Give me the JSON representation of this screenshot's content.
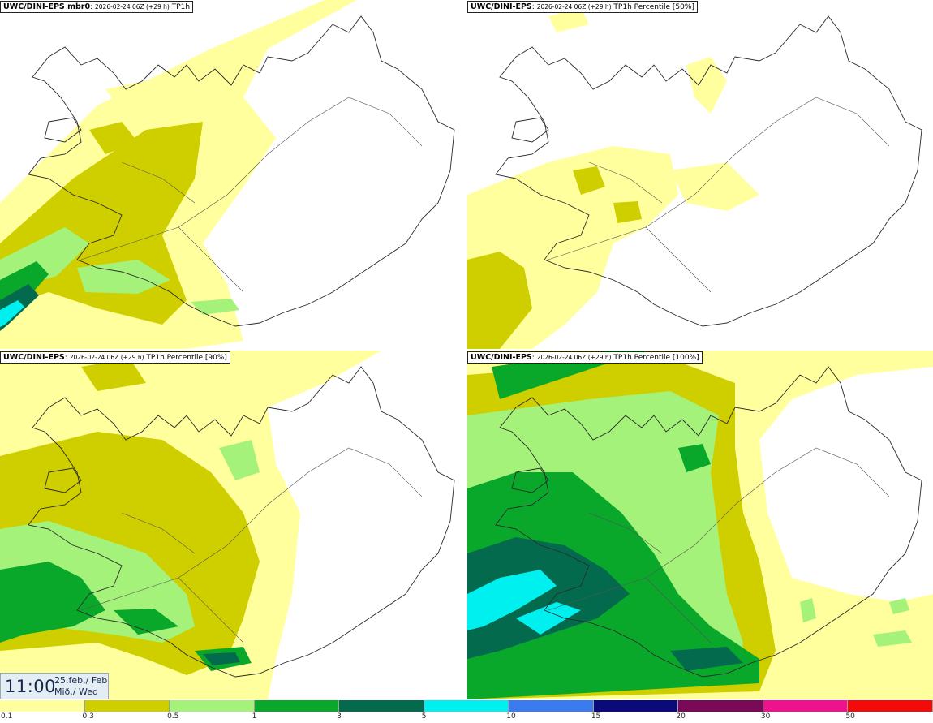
{
  "panels": [
    {
      "model": "UWC/DINI-EPS mbr0",
      "run": "2026-02-24 06Z (+29 h)",
      "field": "TP1h"
    },
    {
      "model": "UWC/DINI-EPS",
      "run": "2026-02-24 06Z (+29 h)",
      "field": "TP1h Percentile [50%]"
    },
    {
      "model": "UWC/DINI-EPS",
      "run": "2026-02-24 06Z (+29 h)",
      "field": "TP1h Percentile [90%]"
    },
    {
      "model": "UWC/DINI-EPS",
      "run": "2026-02-24 06Z (+29 h)",
      "field": "TP1h Percentile [100%]"
    }
  ],
  "valid_time": {
    "time": "11:00",
    "date": "25.feb./ Feb",
    "day": "Mið./ Wed"
  },
  "colorbar": {
    "colors": [
      "#ffff9e",
      "#cfcf00",
      "#a4f27a",
      "#0aa82a",
      "#046a4e",
      "#00f0f0",
      "#3a7cf0",
      "#0a0a7a",
      "#7a0a58",
      "#f0128c",
      "#f50a0a"
    ],
    "ticks": [
      "0.1",
      "0.3",
      "0.5",
      "1",
      "3",
      "5",
      "10",
      "15",
      "20",
      "30",
      "50"
    ]
  },
  "map": {
    "land_color": "#ffffff",
    "outline_color": "#2a2a2a",
    "road_color": "#555555",
    "precip_levels": {
      "light": "#ffff9e",
      "low": "#cfcf00",
      "moderate": "#a4f27a",
      "high": "#0aa82a",
      "very_high": "#046a4e",
      "extreme": "#00f0f0"
    }
  }
}
